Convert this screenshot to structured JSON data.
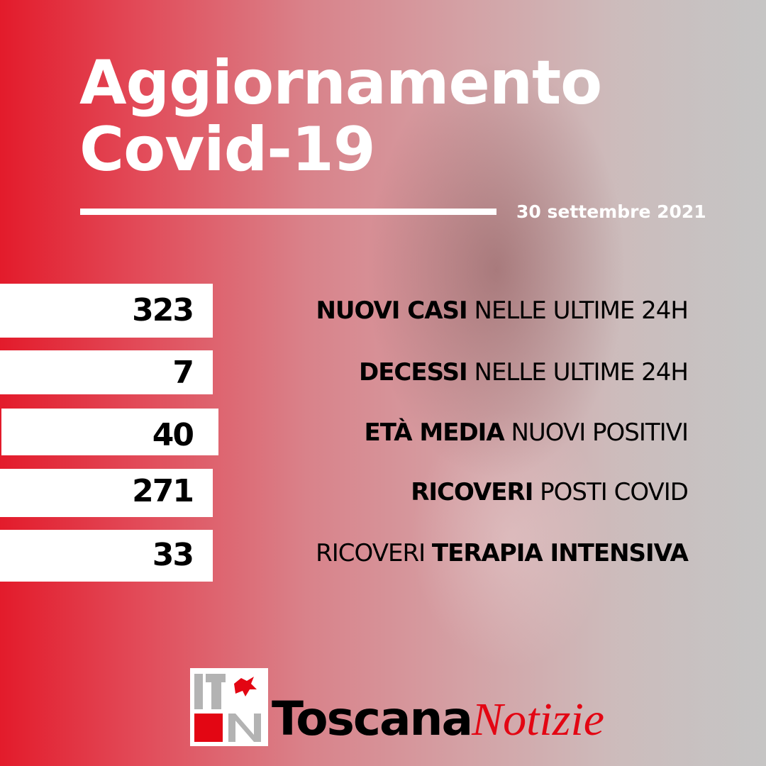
{
  "header": {
    "title_line1": "Aggiornamento",
    "title_line2": "Covid-19",
    "date": "30 settembre 2021"
  },
  "stats": [
    {
      "value": "323",
      "bold": "NUOVI CASI",
      "normal": " NELLE ULTIME 24H"
    },
    {
      "value": "7",
      "bold": "DECESSI",
      "normal": " NELLE ULTIME 24H"
    },
    {
      "value": "40",
      "bold": "ETÀ MEDIA",
      "normal": " NUOVI POSITIVI"
    },
    {
      "value": "271",
      "bold": "RICOVERI",
      "normal": " POSTI COVID"
    },
    {
      "value": "33",
      "normal_first": "RICOVERI ",
      "bold": "TERAPIA INTENSIVA"
    }
  ],
  "footer": {
    "brand_bold": "Toscana",
    "brand_italic": "Notizie",
    "logo_icon": "toscana-notizie-logo"
  },
  "colors": {
    "accent": "#e31b2b",
    "logo_red": "#e30613",
    "logo_gray": "#b3b3b3"
  }
}
